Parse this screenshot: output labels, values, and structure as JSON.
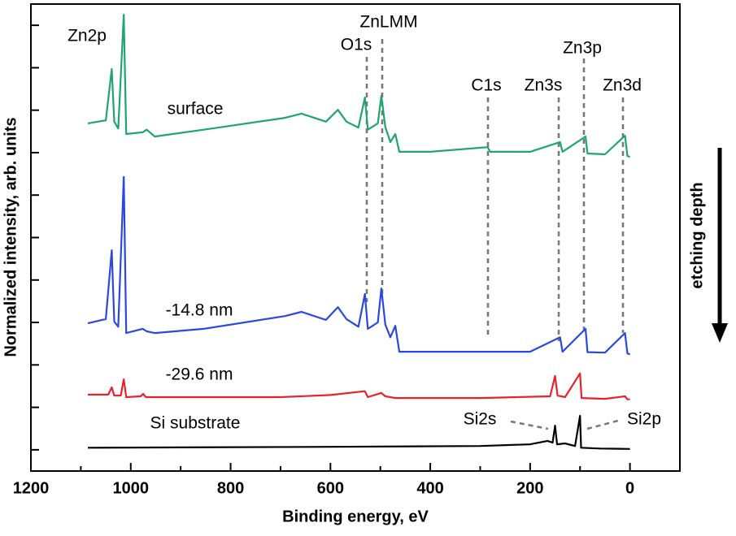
{
  "chart_data": {
    "type": "line",
    "xlabel": "Binding energy, eV",
    "ylabel": "Normalized intensity, arb. units",
    "xlim": [
      1200,
      -100
    ],
    "xticks": [
      1200,
      1000,
      800,
      600,
      400,
      200,
      0
    ],
    "ylim": [
      0,
      110
    ],
    "yticks": [
      5,
      15,
      25,
      35,
      45,
      55,
      65,
      75,
      85,
      95,
      105
    ],
    "series": [
      {
        "name": "surface",
        "color": "#1fa56e",
        "x": [
          1086,
          1050,
          1038,
          1033,
          1025,
          1014,
          1009,
          976,
          968,
          952,
          854,
          691,
          658,
          609,
          585,
          568,
          544,
          531,
          525,
          505,
          498,
          490,
          480,
          470,
          462,
          400,
          285,
          280,
          200,
          140,
          135,
          89,
          85,
          50,
          10,
          5,
          0
        ],
        "values": [
          81.9,
          82.6,
          94.7,
          82.3,
          80.7,
          107.5,
          79.4,
          79.8,
          80.4,
          78.8,
          80.4,
          83.2,
          84.2,
          82.3,
          85.1,
          82.3,
          80.9,
          88.0,
          80.4,
          81.9,
          88.4,
          81.0,
          77.5,
          79.4,
          75.2,
          75.2,
          76.3,
          75.2,
          75.2,
          77.5,
          75.2,
          78.8,
          74.8,
          74.6,
          79.0,
          74.2,
          74.0
        ]
      },
      {
        "name": "-14.8 nm",
        "color": "#2a47e0",
        "x": [
          1086,
          1050,
          1038,
          1033,
          1025,
          1014,
          1009,
          976,
          968,
          952,
          854,
          691,
          658,
          609,
          585,
          568,
          544,
          531,
          525,
          505,
          498,
          490,
          480,
          470,
          462,
          400,
          285,
          200,
          140,
          135,
          89,
          85,
          50,
          10,
          5,
          0
        ],
        "values": [
          34.8,
          35.8,
          52.0,
          35.2,
          34.0,
          69.3,
          32.5,
          33.5,
          32.9,
          32.5,
          33.5,
          36.5,
          37.5,
          35.6,
          38.6,
          35.8,
          34.0,
          41.7,
          33.5,
          35.0,
          43.0,
          34.5,
          31.5,
          34.2,
          28.1,
          28.1,
          28.1,
          28.1,
          31.5,
          28.1,
          33.5,
          28.0,
          27.9,
          32.5,
          27.7,
          27.5
        ]
      },
      {
        "name": "-29.6 nm",
        "color": "#e8222c",
        "x": [
          1086,
          1045,
          1038,
          1033,
          1020,
          1014,
          1009,
          980,
          975,
          970,
          700,
          600,
          531,
          525,
          498,
          490,
          470,
          300,
          160,
          150,
          145,
          130,
          100,
          97,
          50,
          10,
          5,
          0
        ],
        "values": [
          18.0,
          18.0,
          19.7,
          17.8,
          17.8,
          21.6,
          17.4,
          17.6,
          18.2,
          17.4,
          17.4,
          17.9,
          18.8,
          17.4,
          18.4,
          17.6,
          17.2,
          17.2,
          17.6,
          22.4,
          17.8,
          17.4,
          23.0,
          17.2,
          17.0,
          17.6,
          16.9,
          16.9
        ]
      },
      {
        "name": "Si substrate",
        "color": "#000000",
        "x": [
          1086,
          600,
          300,
          200,
          165,
          155,
          150,
          146,
          130,
          110,
          100,
          98,
          60,
          0
        ],
        "values": [
          5.5,
          5.7,
          5.9,
          6.3,
          7.1,
          6.7,
          10.7,
          6.3,
          6.5,
          5.9,
          13.0,
          5.5,
          5.3,
          5.2
        ]
      }
    ],
    "annotations": [
      "Zn2p",
      "O1s",
      "ZnLMM",
      "C1s",
      "Zn3s",
      "Zn3p",
      "Zn3d",
      "Si2s",
      "Si2p",
      "etching depth"
    ]
  }
}
